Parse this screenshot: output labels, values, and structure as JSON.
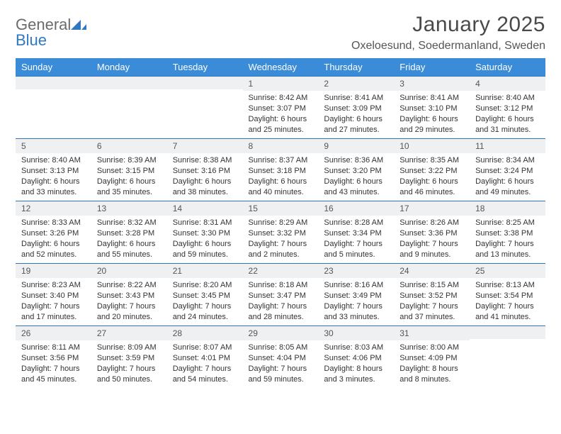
{
  "brand": {
    "word1": "General",
    "word2": "Blue"
  },
  "title": "January 2025",
  "location": "Oxeloesund, Soedermanland, Sweden",
  "colors": {
    "header_bg": "#3a8bd8",
    "header_text": "#ffffff",
    "row_sep": "#2f78c2",
    "daynum_bg": "#eef0f2",
    "text": "#333333",
    "muted": "#555555",
    "logo_gray": "#6b6b6b",
    "logo_blue": "#2f78c2",
    "page_bg": "#ffffff"
  },
  "fonts": {
    "title_pt": 30,
    "location_pt": 16,
    "th_pt": 13,
    "daynum_pt": 12,
    "body_pt": 11
  },
  "day_headers": [
    "Sunday",
    "Monday",
    "Tuesday",
    "Wednesday",
    "Thursday",
    "Friday",
    "Saturday"
  ],
  "weeks": [
    [
      {
        "n": "",
        "sunrise": "",
        "sunset": "",
        "daylight": ""
      },
      {
        "n": "",
        "sunrise": "",
        "sunset": "",
        "daylight": ""
      },
      {
        "n": "",
        "sunrise": "",
        "sunset": "",
        "daylight": ""
      },
      {
        "n": "1",
        "sunrise": "Sunrise: 8:42 AM",
        "sunset": "Sunset: 3:07 PM",
        "daylight": "Daylight: 6 hours and 25 minutes."
      },
      {
        "n": "2",
        "sunrise": "Sunrise: 8:41 AM",
        "sunset": "Sunset: 3:09 PM",
        "daylight": "Daylight: 6 hours and 27 minutes."
      },
      {
        "n": "3",
        "sunrise": "Sunrise: 8:41 AM",
        "sunset": "Sunset: 3:10 PM",
        "daylight": "Daylight: 6 hours and 29 minutes."
      },
      {
        "n": "4",
        "sunrise": "Sunrise: 8:40 AM",
        "sunset": "Sunset: 3:12 PM",
        "daylight": "Daylight: 6 hours and 31 minutes."
      }
    ],
    [
      {
        "n": "5",
        "sunrise": "Sunrise: 8:40 AM",
        "sunset": "Sunset: 3:13 PM",
        "daylight": "Daylight: 6 hours and 33 minutes."
      },
      {
        "n": "6",
        "sunrise": "Sunrise: 8:39 AM",
        "sunset": "Sunset: 3:15 PM",
        "daylight": "Daylight: 6 hours and 35 minutes."
      },
      {
        "n": "7",
        "sunrise": "Sunrise: 8:38 AM",
        "sunset": "Sunset: 3:16 PM",
        "daylight": "Daylight: 6 hours and 38 minutes."
      },
      {
        "n": "8",
        "sunrise": "Sunrise: 8:37 AM",
        "sunset": "Sunset: 3:18 PM",
        "daylight": "Daylight: 6 hours and 40 minutes."
      },
      {
        "n": "9",
        "sunrise": "Sunrise: 8:36 AM",
        "sunset": "Sunset: 3:20 PM",
        "daylight": "Daylight: 6 hours and 43 minutes."
      },
      {
        "n": "10",
        "sunrise": "Sunrise: 8:35 AM",
        "sunset": "Sunset: 3:22 PM",
        "daylight": "Daylight: 6 hours and 46 minutes."
      },
      {
        "n": "11",
        "sunrise": "Sunrise: 8:34 AM",
        "sunset": "Sunset: 3:24 PM",
        "daylight": "Daylight: 6 hours and 49 minutes."
      }
    ],
    [
      {
        "n": "12",
        "sunrise": "Sunrise: 8:33 AM",
        "sunset": "Sunset: 3:26 PM",
        "daylight": "Daylight: 6 hours and 52 minutes."
      },
      {
        "n": "13",
        "sunrise": "Sunrise: 8:32 AM",
        "sunset": "Sunset: 3:28 PM",
        "daylight": "Daylight: 6 hours and 55 minutes."
      },
      {
        "n": "14",
        "sunrise": "Sunrise: 8:31 AM",
        "sunset": "Sunset: 3:30 PM",
        "daylight": "Daylight: 6 hours and 59 minutes."
      },
      {
        "n": "15",
        "sunrise": "Sunrise: 8:29 AM",
        "sunset": "Sunset: 3:32 PM",
        "daylight": "Daylight: 7 hours and 2 minutes."
      },
      {
        "n": "16",
        "sunrise": "Sunrise: 8:28 AM",
        "sunset": "Sunset: 3:34 PM",
        "daylight": "Daylight: 7 hours and 5 minutes."
      },
      {
        "n": "17",
        "sunrise": "Sunrise: 8:26 AM",
        "sunset": "Sunset: 3:36 PM",
        "daylight": "Daylight: 7 hours and 9 minutes."
      },
      {
        "n": "18",
        "sunrise": "Sunrise: 8:25 AM",
        "sunset": "Sunset: 3:38 PM",
        "daylight": "Daylight: 7 hours and 13 minutes."
      }
    ],
    [
      {
        "n": "19",
        "sunrise": "Sunrise: 8:23 AM",
        "sunset": "Sunset: 3:40 PM",
        "daylight": "Daylight: 7 hours and 17 minutes."
      },
      {
        "n": "20",
        "sunrise": "Sunrise: 8:22 AM",
        "sunset": "Sunset: 3:43 PM",
        "daylight": "Daylight: 7 hours and 20 minutes."
      },
      {
        "n": "21",
        "sunrise": "Sunrise: 8:20 AM",
        "sunset": "Sunset: 3:45 PM",
        "daylight": "Daylight: 7 hours and 24 minutes."
      },
      {
        "n": "22",
        "sunrise": "Sunrise: 8:18 AM",
        "sunset": "Sunset: 3:47 PM",
        "daylight": "Daylight: 7 hours and 28 minutes."
      },
      {
        "n": "23",
        "sunrise": "Sunrise: 8:16 AM",
        "sunset": "Sunset: 3:49 PM",
        "daylight": "Daylight: 7 hours and 33 minutes."
      },
      {
        "n": "24",
        "sunrise": "Sunrise: 8:15 AM",
        "sunset": "Sunset: 3:52 PM",
        "daylight": "Daylight: 7 hours and 37 minutes."
      },
      {
        "n": "25",
        "sunrise": "Sunrise: 8:13 AM",
        "sunset": "Sunset: 3:54 PM",
        "daylight": "Daylight: 7 hours and 41 minutes."
      }
    ],
    [
      {
        "n": "26",
        "sunrise": "Sunrise: 8:11 AM",
        "sunset": "Sunset: 3:56 PM",
        "daylight": "Daylight: 7 hours and 45 minutes."
      },
      {
        "n": "27",
        "sunrise": "Sunrise: 8:09 AM",
        "sunset": "Sunset: 3:59 PM",
        "daylight": "Daylight: 7 hours and 50 minutes."
      },
      {
        "n": "28",
        "sunrise": "Sunrise: 8:07 AM",
        "sunset": "Sunset: 4:01 PM",
        "daylight": "Daylight: 7 hours and 54 minutes."
      },
      {
        "n": "29",
        "sunrise": "Sunrise: 8:05 AM",
        "sunset": "Sunset: 4:04 PM",
        "daylight": "Daylight: 7 hours and 59 minutes."
      },
      {
        "n": "30",
        "sunrise": "Sunrise: 8:03 AM",
        "sunset": "Sunset: 4:06 PM",
        "daylight": "Daylight: 8 hours and 3 minutes."
      },
      {
        "n": "31",
        "sunrise": "Sunrise: 8:00 AM",
        "sunset": "Sunset: 4:09 PM",
        "daylight": "Daylight: 8 hours and 8 minutes."
      },
      {
        "n": "",
        "sunrise": "",
        "sunset": "",
        "daylight": ""
      }
    ]
  ]
}
